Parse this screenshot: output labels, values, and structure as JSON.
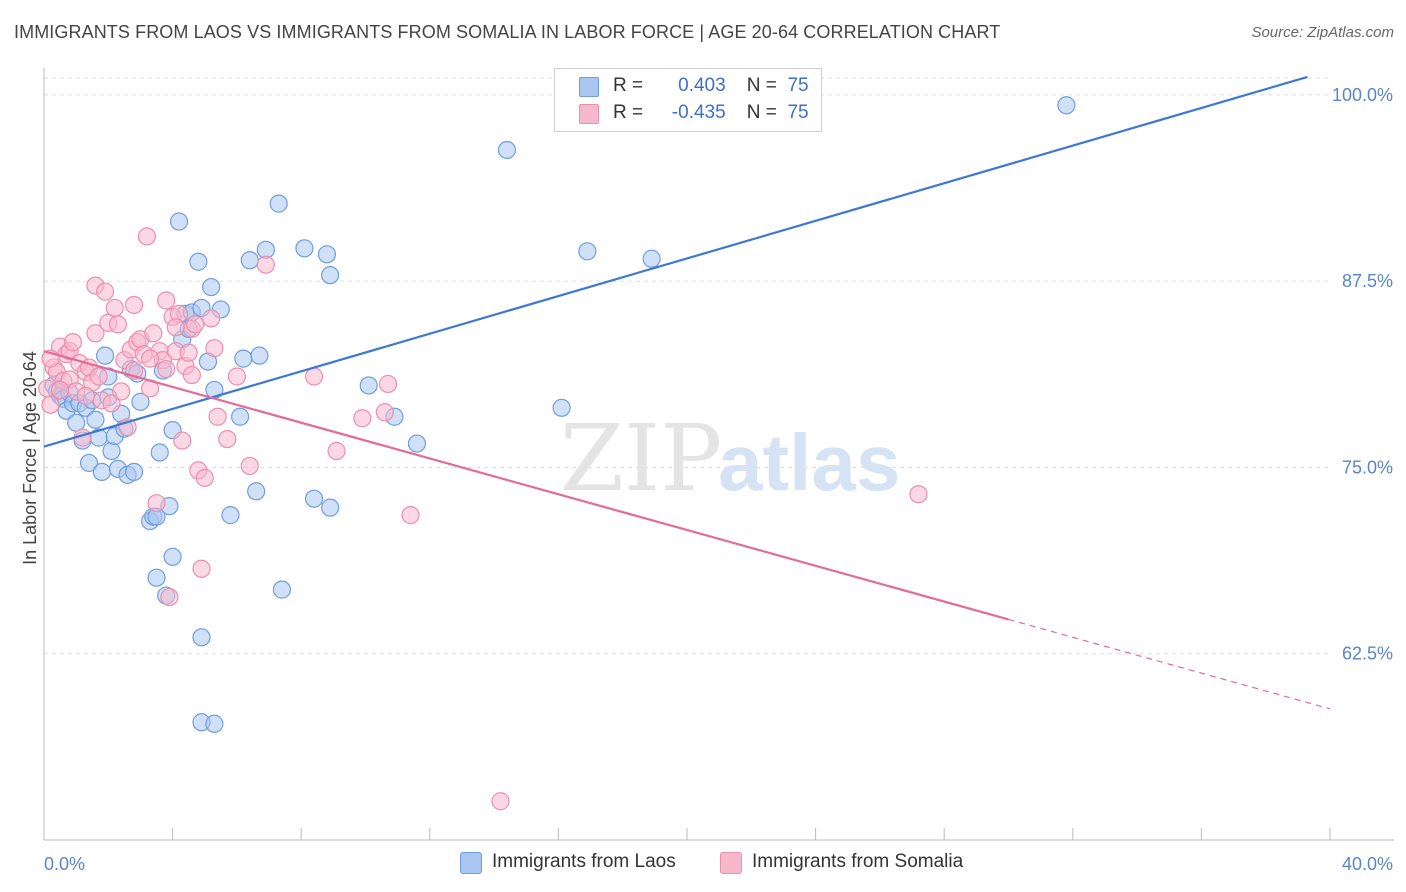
{
  "title": "IMMIGRANTS FROM LAOS VS IMMIGRANTS FROM SOMALIA IN LABOR FORCE | AGE 20-64 CORRELATION CHART",
  "source": "Source: ZipAtlas.com",
  "watermark": {
    "zip": "ZIP",
    "atlas": "atlas"
  },
  "legend": {
    "laos": {
      "r_label": "R =",
      "r_value": "0.403",
      "n_label": "N =",
      "n_value": "75"
    },
    "somalia": {
      "r_label": "R =",
      "r_value": "-0.435",
      "n_label": "N =",
      "n_value": "75"
    }
  },
  "colors": {
    "laos_fill": "#a9c6f0",
    "laos_stroke": "#6f9ee0",
    "laos_line": "#3d78d4",
    "somalia_fill": "#f7b8cc",
    "somalia_stroke": "#ec8fae",
    "somalia_line": "#e46b98",
    "grid": "#dddddd",
    "tick_text": "#5b84c9"
  },
  "chart_data": {
    "type": "scatter",
    "title": "IMMIGRANTS FROM LAOS VS IMMIGRANTS FROM SOMALIA IN LABOR FORCE | AGE 20-64 CORRELATION CHART",
    "xlabel": "",
    "ylabel": "In Labor Force | Age 20-64",
    "xlim": [
      0,
      40
    ],
    "ylim": [
      50,
      101.8
    ],
    "x_tick_labels": [
      "0.0%",
      "40.0%"
    ],
    "y_ticks": [
      62.5,
      75.0,
      87.5,
      100.0
    ],
    "y_tick_labels": [
      "62.5%",
      "75.0%",
      "87.5%",
      "100.0%"
    ],
    "grid": true,
    "series": [
      {
        "name": "Immigrants from Laos",
        "trend": {
          "x": [
            0,
            39.3
          ],
          "y": [
            76.4,
            101.2
          ],
          "dashed_from": null
        },
        "points": [
          [
            0.3,
            80.5
          ],
          [
            0.4,
            80.1
          ],
          [
            0.5,
            79.8
          ],
          [
            0.6,
            79.6
          ],
          [
            0.7,
            78.8
          ],
          [
            0.8,
            80.0
          ],
          [
            0.9,
            79.3
          ],
          [
            1.0,
            78.0
          ],
          [
            1.1,
            79.3
          ],
          [
            1.2,
            76.8
          ],
          [
            1.3,
            79.0
          ],
          [
            1.4,
            75.3
          ],
          [
            1.5,
            79.5
          ],
          [
            1.6,
            78.2
          ],
          [
            1.7,
            77.0
          ],
          [
            1.8,
            74.7
          ],
          [
            1.9,
            82.5
          ],
          [
            2.0,
            81.1
          ],
          [
            2.0,
            79.7
          ],
          [
            2.1,
            76.1
          ],
          [
            2.2,
            77.1
          ],
          [
            2.3,
            74.9
          ],
          [
            2.4,
            78.6
          ],
          [
            2.5,
            77.6
          ],
          [
            2.6,
            74.5
          ],
          [
            2.7,
            81.6
          ],
          [
            2.8,
            74.7
          ],
          [
            2.9,
            81.3
          ],
          [
            3.0,
            79.4
          ],
          [
            3.3,
            71.4
          ],
          [
            3.4,
            71.7
          ],
          [
            3.5,
            67.6
          ],
          [
            3.5,
            71.7
          ],
          [
            3.6,
            76.0
          ],
          [
            3.7,
            81.5
          ],
          [
            3.8,
            66.4
          ],
          [
            3.9,
            72.4
          ],
          [
            4.0,
            77.5
          ],
          [
            4.0,
            69.0
          ],
          [
            4.2,
            91.5
          ],
          [
            4.3,
            83.6
          ],
          [
            4.4,
            85.3
          ],
          [
            4.5,
            84.3
          ],
          [
            4.6,
            85.4
          ],
          [
            4.8,
            88.8
          ],
          [
            4.9,
            85.7
          ],
          [
            4.9,
            63.6
          ],
          [
            4.9,
            57.9
          ],
          [
            5.1,
            82.1
          ],
          [
            5.2,
            87.1
          ],
          [
            5.3,
            80.2
          ],
          [
            5.3,
            57.8
          ],
          [
            5.5,
            85.6
          ],
          [
            5.8,
            71.8
          ],
          [
            6.1,
            78.4
          ],
          [
            6.2,
            82.3
          ],
          [
            6.4,
            88.9
          ],
          [
            6.6,
            73.4
          ],
          [
            6.7,
            82.5
          ],
          [
            6.9,
            89.6
          ],
          [
            7.3,
            92.7
          ],
          [
            7.4,
            66.8
          ],
          [
            8.1,
            89.7
          ],
          [
            8.4,
            72.9
          ],
          [
            8.8,
            89.3
          ],
          [
            8.9,
            87.9
          ],
          [
            8.9,
            72.3
          ],
          [
            10.1,
            80.5
          ],
          [
            10.9,
            78.4
          ],
          [
            11.6,
            76.6
          ],
          [
            14.4,
            96.3
          ],
          [
            16.1,
            79.0
          ],
          [
            16.9,
            89.5
          ],
          [
            18.9,
            89.0
          ],
          [
            31.8,
            99.3
          ]
        ]
      },
      {
        "name": "Immigrants from Somalia",
        "trend": {
          "x": [
            0,
            40
          ],
          "y": [
            82.8,
            58.8
          ],
          "dashed_from": 30.0
        },
        "points": [
          [
            0.1,
            80.3
          ],
          [
            0.2,
            79.2
          ],
          [
            0.3,
            81.7
          ],
          [
            0.4,
            81.4
          ],
          [
            0.5,
            83.1
          ],
          [
            0.6,
            80.8
          ],
          [
            0.7,
            82.6
          ],
          [
            0.8,
            82.8
          ],
          [
            0.8,
            80.9
          ],
          [
            0.9,
            83.4
          ],
          [
            1.0,
            80.1
          ],
          [
            1.1,
            82.0
          ],
          [
            1.2,
            77.0
          ],
          [
            1.3,
            81.4
          ],
          [
            1.4,
            81.7
          ],
          [
            1.5,
            80.7
          ],
          [
            1.6,
            87.2
          ],
          [
            1.6,
            84.0
          ],
          [
            1.7,
            81.1
          ],
          [
            1.8,
            79.5
          ],
          [
            1.9,
            86.8
          ],
          [
            2.0,
            84.7
          ],
          [
            2.1,
            79.3
          ],
          [
            2.2,
            85.7
          ],
          [
            2.3,
            84.6
          ],
          [
            2.4,
            80.1
          ],
          [
            2.5,
            82.2
          ],
          [
            2.6,
            77.7
          ],
          [
            2.7,
            82.9
          ],
          [
            2.8,
            81.5
          ],
          [
            2.9,
            83.4
          ],
          [
            3.0,
            83.6
          ],
          [
            3.1,
            82.6
          ],
          [
            3.2,
            90.5
          ],
          [
            3.3,
            80.3
          ],
          [
            3.4,
            84.0
          ],
          [
            3.5,
            72.6
          ],
          [
            3.6,
            82.8
          ],
          [
            3.7,
            82.2
          ],
          [
            3.8,
            86.2
          ],
          [
            3.8,
            81.6
          ],
          [
            3.9,
            66.3
          ],
          [
            4.0,
            85.1
          ],
          [
            4.1,
            82.8
          ],
          [
            4.2,
            85.3
          ],
          [
            4.3,
            76.8
          ],
          [
            4.4,
            81.8
          ],
          [
            4.5,
            82.7
          ],
          [
            4.6,
            84.3
          ],
          [
            4.7,
            84.6
          ],
          [
            4.8,
            74.8
          ],
          [
            4.9,
            68.2
          ],
          [
            5.0,
            74.3
          ],
          [
            5.2,
            85.0
          ],
          [
            5.3,
            83.0
          ],
          [
            5.7,
            76.9
          ],
          [
            6.0,
            81.1
          ],
          [
            6.4,
            75.1
          ],
          [
            6.9,
            88.6
          ],
          [
            8.4,
            81.1
          ],
          [
            9.1,
            76.1
          ],
          [
            9.9,
            78.3
          ],
          [
            10.6,
            78.7
          ],
          [
            10.7,
            80.6
          ],
          [
            11.4,
            71.8
          ],
          [
            14.2,
            52.6
          ],
          [
            27.2,
            73.2
          ],
          [
            0.2,
            82.3
          ],
          [
            0.5,
            80.2
          ],
          [
            1.3,
            79.8
          ],
          [
            2.8,
            85.9
          ],
          [
            3.3,
            82.3
          ],
          [
            4.1,
            84.4
          ],
          [
            4.6,
            81.2
          ],
          [
            5.4,
            78.4
          ]
        ]
      }
    ]
  },
  "bottom_legend": {
    "laos_label": "Immigrants from Laos",
    "somalia_label": "Immigrants from Somalia"
  }
}
